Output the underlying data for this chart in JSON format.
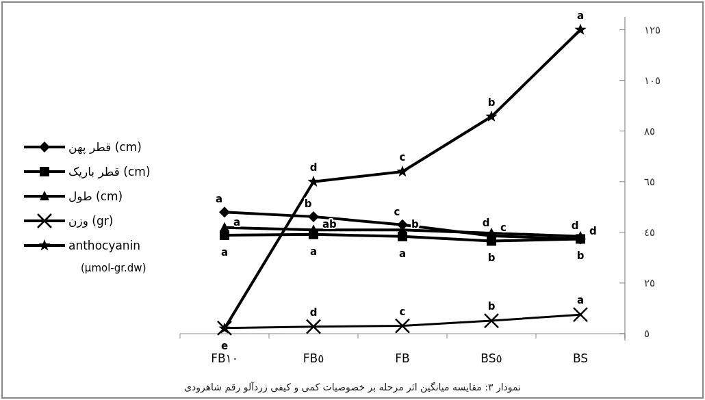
{
  "chart_data": {
    "type": "line",
    "categories": [
      "FB١٠",
      "FB٥",
      "FB",
      "BS٥",
      "BS"
    ],
    "series": [
      {
        "name": "قطر پهن (cm)",
        "color": "#000000",
        "marker": "diamond",
        "values": [
          53.0,
          51.2,
          48.0,
          43.6,
          42.4
        ],
        "value_labels": [
          "a",
          "b",
          "c",
          "d",
          "d"
        ]
      },
      {
        "name": "قطر باریک (cm)",
        "color": "#000000",
        "marker": "square",
        "values": [
          43.9,
          44.2,
          43.4,
          41.6,
          42.4
        ],
        "value_labels": [
          "a",
          "a",
          "a",
          "b",
          "b"
        ]
      },
      {
        "name": "طول (cm)",
        "color": "#000000",
        "marker": "triangle",
        "values": [
          46.9,
          46.0,
          46.0,
          44.7,
          43.4
        ],
        "value_labels": [
          "a",
          "ab",
          "b",
          "c",
          "d"
        ]
      },
      {
        "name": "وزن (gr)",
        "color": "#000000",
        "marker": "cross",
        "values": [
          7.2,
          7.8,
          8.1,
          10.1,
          12.5
        ],
        "value_labels": [
          null,
          "d",
          "c",
          "b",
          "a"
        ]
      },
      {
        "name": "anthocyanin (µmol-gr.dw)",
        "color": "#000000",
        "marker": "star",
        "values": [
          7.0,
          65.0,
          69.0,
          90.7,
          125.0
        ],
        "value_labels": [
          "e",
          "d",
          "c",
          "b",
          "a"
        ]
      }
    ],
    "ylim": [
      5,
      130
    ],
    "yticks": [
      {
        "value": 5,
        "label": "٥"
      },
      {
        "value": 25,
        "label": "٢٥"
      },
      {
        "value": 45,
        "label": "٤٥"
      },
      {
        "value": 65,
        "label": "٦٥"
      },
      {
        "value": 85,
        "label": "٨٥"
      },
      {
        "value": 105,
        "label": "١٠٥"
      },
      {
        "value": 125,
        "label": "١٢٥"
      }
    ],
    "legend": "left",
    "grid": false,
    "line_style": "solid",
    "annotations": [
      "نمودار ۳: مقایسه میانگین اثر مرحله بر خصوصیات کمی و کیفی زردآلو رقم شاهرودی"
    ]
  }
}
